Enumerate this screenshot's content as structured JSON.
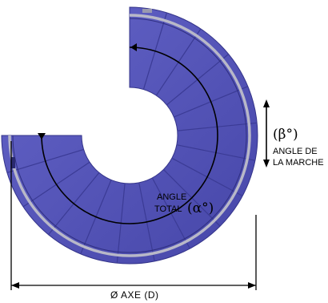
{
  "diagram": {
    "stair_color": "#5757bb",
    "stair_dark": "#3b3b95",
    "rail_color": "#b8b8c8",
    "annotation_color": "#000000",
    "step_count": 16,
    "beta_symbol": "(β°)",
    "beta_label_line1": "ANGLE DE",
    "beta_label_line2": "LA MARCHE",
    "alpha_label_line1": "ANGLE",
    "alpha_label_line2": "TOTAL",
    "alpha_symbol": "(α°)",
    "diameter_label": "Ø AXE (D)"
  }
}
